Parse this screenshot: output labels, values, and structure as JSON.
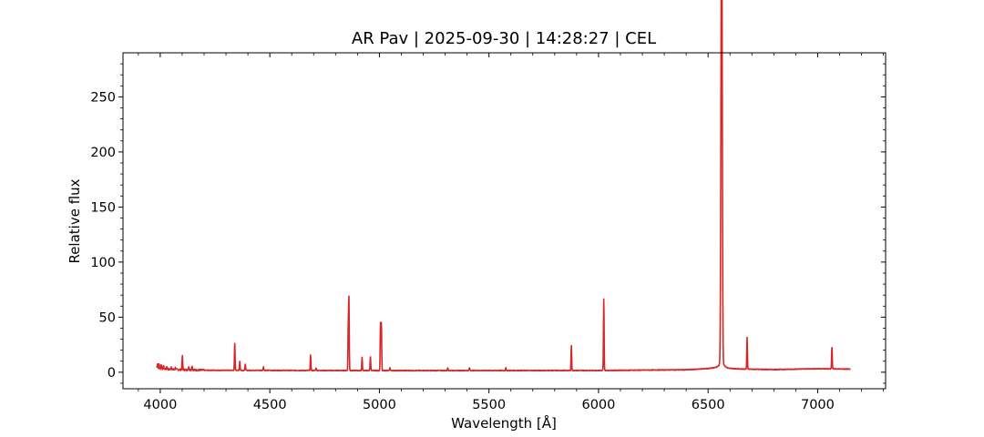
{
  "chart_data": {
    "type": "line",
    "title": "AR Pav | 2025-09-30 | 14:28:27 | CEL",
    "xlabel": "Wavelength [Å]",
    "ylabel": "Relative flux",
    "xlim": [
      3830,
      7310
    ],
    "ylim": [
      -15,
      290
    ],
    "x_ticks": [
      4000,
      4500,
      5000,
      5500,
      6000,
      6500,
      7000
    ],
    "y_ticks": [
      0,
      50,
      100,
      150,
      200,
      250
    ],
    "x_tick_labels": [
      "4000",
      "4500",
      "5000",
      "5500",
      "6000",
      "6500",
      "7000"
    ],
    "y_tick_labels": [
      "0",
      "50",
      "100",
      "150",
      "200",
      "250"
    ],
    "grid": false,
    "series": [
      {
        "color": "#d62728",
        "wavelength_range": [
          3985,
          7150
        ],
        "continuum": [
          [
            3985,
            3.5
          ],
          [
            4050,
            2.5
          ],
          [
            4200,
            1.8
          ],
          [
            5000,
            1.5
          ],
          [
            6000,
            1.6
          ],
          [
            6400,
            2.2
          ],
          [
            6530,
            3.5
          ],
          [
            6600,
            3.0
          ],
          [
            6800,
            2.4
          ],
          [
            7000,
            3.2
          ],
          [
            7150,
            2.8
          ]
        ],
        "emission_lines": [
          {
            "x": 3988,
            "y": 8.5
          },
          {
            "x": 3995,
            "y": 7.5
          },
          {
            "x": 4005,
            "y": 7.0
          },
          {
            "x": 4015,
            "y": 6.0
          },
          {
            "x": 4030,
            "y": 5.5
          },
          {
            "x": 4050,
            "y": 5.0
          },
          {
            "x": 4070,
            "y": 4.5
          },
          {
            "x": 4101,
            "y": 15.0
          },
          {
            "x": 4130,
            "y": 5.5
          },
          {
            "x": 4145,
            "y": 6.0
          },
          {
            "x": 4340,
            "y": 26.5
          },
          {
            "x": 4363,
            "y": 10.0
          },
          {
            "x": 4388,
            "y": 7.5
          },
          {
            "x": 4471,
            "y": 5.0
          },
          {
            "x": 4686,
            "y": 15.5
          },
          {
            "x": 4711,
            "y": 4.0
          },
          {
            "x": 4858,
            "y": 41.0
          },
          {
            "x": 4861,
            "y": 65.0
          },
          {
            "x": 4921,
            "y": 13.5
          },
          {
            "x": 4959,
            "y": 14.5
          },
          {
            "x": 5005,
            "y": 44.5
          },
          {
            "x": 5009,
            "y": 45.5
          },
          {
            "x": 5048,
            "y": 4.0
          },
          {
            "x": 5312,
            "y": 4.0
          },
          {
            "x": 5411,
            "y": 4.0
          },
          {
            "x": 5577,
            "y": 4.0
          },
          {
            "x": 5876,
            "y": 24.5
          },
          {
            "x": 6024,
            "y": 67.0
          },
          {
            "x": 6560,
            "y": 231.0
          },
          {
            "x": 6563,
            "y": 276.0
          },
          {
            "x": 6678,
            "y": 31.5
          },
          {
            "x": 7065,
            "y": 23.0
          }
        ]
      }
    ]
  }
}
